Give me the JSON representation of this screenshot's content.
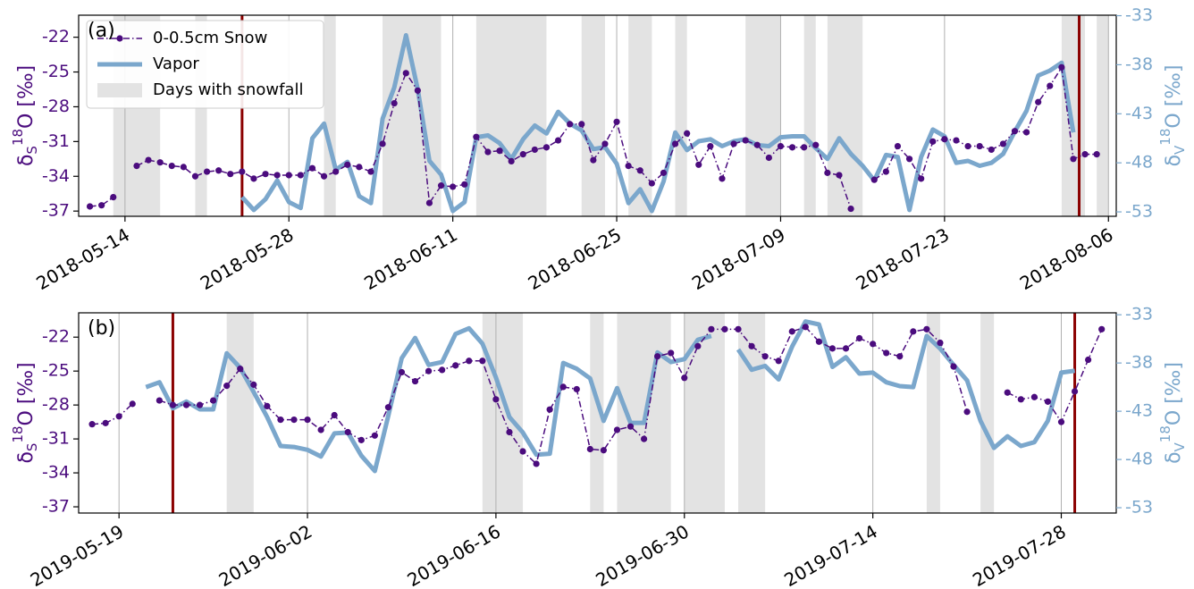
{
  "chart_data": [
    {
      "type": "line",
      "panel": "(a)",
      "legend": "upper left",
      "x": [
        "2018-05-11",
        "2018-05-12",
        "2018-05-13",
        "2018-05-14",
        "2018-05-15",
        "2018-05-16",
        "2018-05-17",
        "2018-05-18",
        "2018-05-19",
        "2018-05-20",
        "2018-05-21",
        "2018-05-22",
        "2018-05-23",
        "2018-05-24",
        "2018-05-25",
        "2018-05-26",
        "2018-05-27",
        "2018-05-28",
        "2018-05-29",
        "2018-05-30",
        "2018-05-31",
        "2018-06-01",
        "2018-06-02",
        "2018-06-03",
        "2018-06-04",
        "2018-06-05",
        "2018-06-06",
        "2018-06-07",
        "2018-06-08",
        "2018-06-09",
        "2018-06-10",
        "2018-06-11",
        "2018-06-12",
        "2018-06-13",
        "2018-06-14",
        "2018-06-15",
        "2018-06-16",
        "2018-06-17",
        "2018-06-18",
        "2018-06-19",
        "2018-06-20",
        "2018-06-21",
        "2018-06-22",
        "2018-06-23",
        "2018-06-24",
        "2018-06-25",
        "2018-06-26",
        "2018-06-27",
        "2018-06-28",
        "2018-06-29",
        "2018-06-30",
        "2018-07-01",
        "2018-07-02",
        "2018-07-03",
        "2018-07-04",
        "2018-07-05",
        "2018-07-06",
        "2018-07-07",
        "2018-07-08",
        "2018-07-09",
        "2018-07-10",
        "2018-07-11",
        "2018-07-12",
        "2018-07-13",
        "2018-07-14",
        "2018-07-15",
        "2018-07-16",
        "2018-07-17",
        "2018-07-18",
        "2018-07-19",
        "2018-07-20",
        "2018-07-21",
        "2018-07-22",
        "2018-07-23",
        "2018-07-24",
        "2018-07-25",
        "2018-07-26",
        "2018-07-27",
        "2018-07-28",
        "2018-07-29",
        "2018-07-30",
        "2018-07-31",
        "2018-08-01",
        "2018-08-02",
        "2018-08-03",
        "2018-08-04",
        "2018-08-05"
      ],
      "series": [
        {
          "name": "0-0.5cm Snow",
          "color": "#4b0c7e",
          "axis": "y",
          "style": "dashdot-marker",
          "values": [
            -36.6,
            -36.5,
            -35.8,
            null,
            -33.1,
            -32.6,
            -32.8,
            -33.1,
            -33.2,
            -34.0,
            -33.6,
            -33.5,
            -33.8,
            -33.6,
            -34.2,
            -33.8,
            -33.9,
            -33.9,
            -33.9,
            -33.3,
            -34.0,
            -33.6,
            -33.0,
            -33.2,
            -33.6,
            -31.2,
            -27.7,
            -25.1,
            -26.6,
            -36.3,
            -34.8,
            -34.9,
            -34.7,
            -30.6,
            -31.9,
            -31.8,
            -32.7,
            -32.1,
            -31.7,
            -31.5,
            -30.9,
            -29.5,
            -29.5,
            -32.6,
            -31.2,
            -29.3,
            -33.1,
            -33.5,
            -34.6,
            -33.7,
            -31.2,
            -30.3,
            -33.0,
            -31.4,
            -34.2,
            -31.2,
            -30.9,
            -31.3,
            -32.4,
            -31.4,
            -31.5,
            -31.5,
            -31.3,
            -33.7,
            -33.9,
            -36.8,
            null,
            -34.3,
            -33.6,
            -31.4,
            -32.5,
            -34.2,
            -31.0,
            -30.8,
            -30.9,
            -31.4,
            -31.4,
            -31.7,
            -31.2,
            -30.1,
            -30.2,
            -27.6,
            -26.2,
            -24.6,
            -32.5,
            -32.1,
            -32.1
          ]
        },
        {
          "name": "Vapor",
          "color": "#7ba7cc",
          "axis": "y2",
          "style": "thick",
          "values": [
            null,
            null,
            null,
            null,
            null,
            null,
            null,
            null,
            null,
            null,
            null,
            null,
            null,
            -51.5,
            -52.8,
            -51.7,
            -49.8,
            -52.0,
            -52.6,
            -45.5,
            -44.0,
            -48.7,
            -47.9,
            -51.4,
            -52.1,
            -43.5,
            -40.3,
            -35.0,
            -40.5,
            -47.8,
            -49.2,
            -52.9,
            -52.0,
            -45.4,
            -45.2,
            -46.0,
            -47.6,
            -45.6,
            -44.2,
            -45.0,
            -42.8,
            -44.0,
            -44.7,
            -46.6,
            -46.4,
            -48.1,
            -52.1,
            -50.7,
            -52.9,
            -49.9,
            -44.9,
            -46.7,
            -45.8,
            -45.6,
            -46.3,
            -45.8,
            -45.6,
            -46.2,
            -46.3,
            -45.4,
            -45.3,
            -45.3,
            -46.5,
            -47.6,
            -45.5,
            -47.1,
            -48.3,
            -49.8,
            -47.2,
            -47.4,
            -52.8,
            -47.4,
            -44.6,
            -45.3,
            -48.0,
            -47.8,
            -48.3,
            -48.0,
            -47.1,
            -44.8,
            -42.7,
            -39.1,
            -38.6,
            -37.8,
            -44.9,
            null,
            null
          ]
        }
      ],
      "snowfall": {
        "name": "Days with snowfall",
        "color": "#e3e3e3",
        "spans": [
          [
            "2018-05-13",
            "2018-05-17"
          ],
          [
            "2018-05-20",
            "2018-05-21"
          ],
          [
            "2018-05-31",
            "2018-06-01"
          ],
          [
            "2018-06-05",
            "2018-06-10"
          ],
          [
            "2018-06-13",
            "2018-06-19"
          ],
          [
            "2018-06-22",
            "2018-06-24"
          ],
          [
            "2018-06-26",
            "2018-06-28"
          ],
          [
            "2018-06-30",
            "2018-07-01"
          ],
          [
            "2018-07-06",
            "2018-07-09"
          ],
          [
            "2018-07-11",
            "2018-07-12"
          ],
          [
            "2018-07-13",
            "2018-07-16"
          ],
          [
            "2018-08-02",
            "2018-08-04"
          ],
          [
            "2018-08-05",
            "2018-08-06"
          ]
        ]
      },
      "vlines": [
        "2018-05-24",
        "2018-08-03T12:00"
      ],
      "vline_color": "#8b0000",
      "xlim": [
        "2018-05-10T01:00",
        "2018-08-06T16:00"
      ],
      "xticks": [
        "2018-05-14",
        "2018-05-28",
        "2018-06-11",
        "2018-06-25",
        "2018-07-09",
        "2018-07-23",
        "2018-08-06"
      ],
      "grid": true,
      "ylim": [
        -37.45,
        -20.1
      ],
      "yticks": [
        -37,
        -34,
        -31,
        -28,
        -25,
        -22
      ],
      "y2lim": [
        -53.45,
        -32.95
      ],
      "y2ticks": [
        -53,
        -48,
        -43,
        -38,
        -33
      ],
      "ylabel": [
        "δ",
        "S",
        "18",
        "O [‰]"
      ],
      "y2label": [
        "δ",
        "V",
        "18",
        "O [‰]"
      ]
    },
    {
      "type": "line",
      "panel": "(b)",
      "x": [
        "2019-05-17",
        "2019-05-18",
        "2019-05-19",
        "2019-05-20",
        "2019-05-21",
        "2019-05-22",
        "2019-05-23",
        "2019-05-24",
        "2019-05-25",
        "2019-05-26",
        "2019-05-27",
        "2019-05-28",
        "2019-05-29",
        "2019-05-30",
        "2019-05-31",
        "2019-06-01",
        "2019-06-02",
        "2019-06-03",
        "2019-06-04",
        "2019-06-05",
        "2019-06-06",
        "2019-06-07",
        "2019-06-08",
        "2019-06-09",
        "2019-06-10",
        "2019-06-11",
        "2019-06-12",
        "2019-06-13",
        "2019-06-14",
        "2019-06-15",
        "2019-06-16",
        "2019-06-17",
        "2019-06-18",
        "2019-06-19",
        "2019-06-20",
        "2019-06-21",
        "2019-06-22",
        "2019-06-23",
        "2019-06-24",
        "2019-06-25",
        "2019-06-26",
        "2019-06-27",
        "2019-06-28",
        "2019-06-29",
        "2019-06-30",
        "2019-07-01",
        "2019-07-02",
        "2019-07-03",
        "2019-07-04",
        "2019-07-05",
        "2019-07-06",
        "2019-07-07",
        "2019-07-08",
        "2019-07-09",
        "2019-07-10",
        "2019-07-11",
        "2019-07-12",
        "2019-07-13",
        "2019-07-14",
        "2019-07-15",
        "2019-07-16",
        "2019-07-17",
        "2019-07-18",
        "2019-07-19",
        "2019-07-20",
        "2019-07-21",
        "2019-07-22",
        "2019-07-23",
        "2019-07-24",
        "2019-07-25",
        "2019-07-26",
        "2019-07-27",
        "2019-07-28",
        "2019-07-29",
        "2019-07-30",
        "2019-07-31"
      ],
      "series": [
        {
          "color": "#4b0c7e",
          "axis": "y",
          "style": "dashdot-marker",
          "values": [
            -29.7,
            -29.6,
            -29.0,
            -27.9,
            null,
            -27.6,
            -28.0,
            -28.0,
            -28.0,
            -27.6,
            -26.3,
            -24.8,
            -26.2,
            -28.1,
            -29.3,
            -29.3,
            -29.3,
            -30.2,
            -28.9,
            -30.4,
            -31.1,
            -30.7,
            -28.2,
            -25.1,
            -25.9,
            -25.0,
            -24.9,
            -24.5,
            -24.1,
            -24.1,
            -27.5,
            -30.4,
            -32.1,
            -33.2,
            -28.4,
            -26.4,
            -26.6,
            -31.9,
            -32.0,
            -30.2,
            -29.9,
            -31.0,
            -23.7,
            -23.4,
            -25.6,
            -22.8,
            -21.3,
            -21.3,
            -21.3,
            -22.8,
            -23.7,
            -24.1,
            -21.5,
            -21.1,
            -22.4,
            -23.0,
            -23.0,
            -22.1,
            -22.6,
            -23.4,
            -23.7,
            -21.5,
            -21.3,
            -22.5,
            -24.6,
            -28.6,
            null,
            null,
            -26.9,
            -27.5,
            -27.3,
            -27.7,
            -29.5,
            -26.8,
            -24.0,
            -21.3
          ]
        },
        {
          "color": "#7ba7cc",
          "axis": "y2",
          "style": "thick",
          "values": [
            null,
            null,
            null,
            null,
            -40.5,
            -40.0,
            -42.7,
            -42.0,
            -42.8,
            -42.8,
            -37.0,
            -38.5,
            -41.0,
            -43.6,
            -46.6,
            -46.7,
            -47.0,
            -47.7,
            -45.3,
            -45.2,
            -47.6,
            -49.2,
            -43.5,
            -37.5,
            -35.4,
            -38.2,
            -37.9,
            -35.0,
            -34.4,
            -36.0,
            -39.5,
            -43.6,
            -45.2,
            -47.5,
            -47.4,
            -38.0,
            -38.6,
            -39.6,
            -44.0,
            -40.6,
            -44.2,
            -44.2,
            -36.9,
            -37.9,
            -37.6,
            -35.6,
            -35.2,
            null,
            -36.6,
            -38.7,
            -38.3,
            -39.7,
            -36.3,
            -33.7,
            -34.0,
            -38.4,
            -37.4,
            -39.1,
            -39.0,
            -40.0,
            -40.4,
            -40.5,
            -35.2,
            -36.5,
            -38.2,
            -39.8,
            -44.0,
            -46.8,
            -45.6,
            -46.6,
            -46.2,
            -44.0,
            -39.0,
            -38.8,
            null,
            null
          ]
        }
      ],
      "snowfall": {
        "color": "#e3e3e3",
        "spans": [
          [
            "2019-05-27",
            "2019-05-29"
          ],
          [
            "2019-06-15",
            "2019-06-18"
          ],
          [
            "2019-06-23",
            "2019-06-24"
          ],
          [
            "2019-06-25",
            "2019-06-29"
          ],
          [
            "2019-06-30",
            "2019-07-03"
          ],
          [
            "2019-07-04",
            "2019-07-06"
          ],
          [
            "2019-07-18",
            "2019-07-19"
          ],
          [
            "2019-07-22",
            "2019-07-23"
          ]
        ]
      },
      "vlines": [
        "2019-05-23",
        "2019-07-29"
      ],
      "vline_color": "#8b0000",
      "xlim": [
        "2019-05-16",
        "2019-08-01T02:00"
      ],
      "xticks": [
        "2019-05-19",
        "2019-06-02",
        "2019-06-16",
        "2019-06-30",
        "2019-07-14",
        "2019-07-28"
      ],
      "grid": true,
      "ylim": [
        -37.55,
        -19.85
      ],
      "yticks": [
        -37,
        -34,
        -31,
        -28,
        -25,
        -22
      ],
      "y2lim": [
        -53.55,
        -32.8
      ],
      "y2ticks": [
        -53,
        -48,
        -43,
        -38,
        -33
      ],
      "ylabel": [
        "δ",
        "S",
        "18",
        "O [‰]"
      ],
      "y2label": [
        "δ",
        "V",
        "18",
        "O [‰]"
      ]
    }
  ]
}
